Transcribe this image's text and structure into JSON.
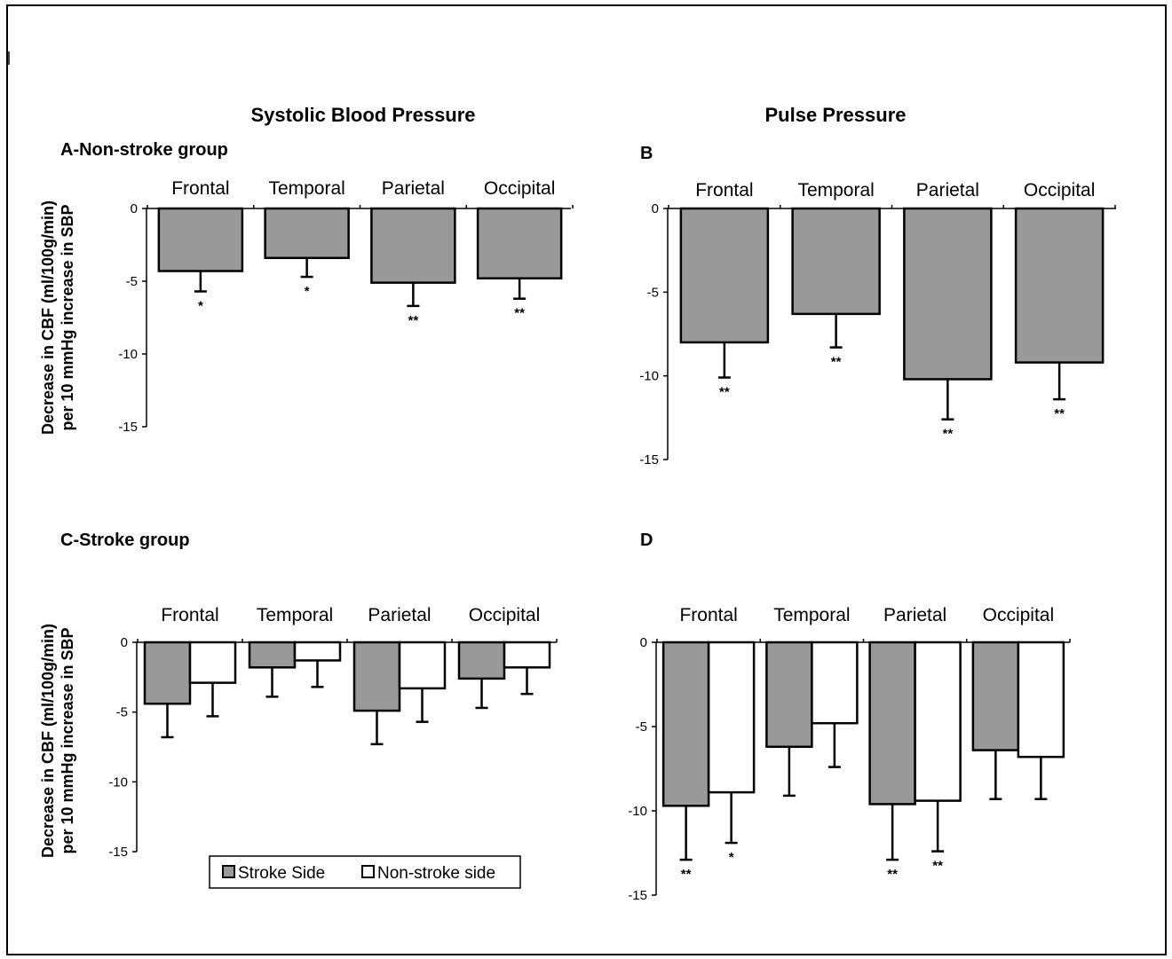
{
  "headers": {
    "left": "Systolic Blood Pressure",
    "right": "Pulse Pressure"
  },
  "legend": {
    "stroke": "Stroke Side",
    "nonstroke": "Non-stroke side"
  },
  "colors": {
    "stroke_side": "#999999",
    "non_stroke_side": "#ffffff",
    "outline": "#000000"
  },
  "chart_data": [
    {
      "id": "A",
      "panel_label": "A-Non-stroke group",
      "type": "bar",
      "categories": [
        "Frontal",
        "Temporal",
        "Parietal",
        "Occipital"
      ],
      "ylabel": [
        "Decrease in CBF (ml/100g/min)",
        "per 10 mmHg increase in SBP"
      ],
      "yticks": [
        0,
        -5,
        -10,
        -15
      ],
      "ylim": [
        -15,
        0
      ],
      "series": [
        {
          "values": [
            -4.3,
            -3.4,
            -5.1,
            -4.8
          ],
          "errors": [
            1.4,
            1.3,
            1.6,
            1.4
          ],
          "significance": [
            "*",
            "*",
            "**",
            "**"
          ]
        }
      ]
    },
    {
      "id": "B",
      "panel_label": "B",
      "type": "bar",
      "categories": [
        "Frontal",
        "Temporal",
        "Parietal",
        "Occipital"
      ],
      "ylabel": [],
      "yticks": [
        0,
        -5,
        -10,
        -15
      ],
      "ylim": [
        -15,
        0
      ],
      "series": [
        {
          "values": [
            -8.0,
            -6.3,
            -10.2,
            -9.2
          ],
          "errors": [
            2.1,
            2.0,
            2.4,
            2.2
          ],
          "significance": [
            "**",
            "**",
            "**",
            "**"
          ]
        }
      ]
    },
    {
      "id": "C",
      "panel_label": "C-Stroke group",
      "type": "bar",
      "categories": [
        "Frontal",
        "Temporal",
        "Parietal",
        "Occipital"
      ],
      "ylabel": [
        "Decrease in CBF (ml/100g/min)",
        "per 10 mmHg increase in SBP"
      ],
      "yticks": [
        0,
        -5,
        -10,
        -15
      ],
      "ylim": [
        -15,
        0
      ],
      "series": [
        {
          "name": "Stroke Side",
          "values": [
            -4.4,
            -1.8,
            -4.9,
            -2.6
          ],
          "errors": [
            2.4,
            2.1,
            2.4,
            2.1
          ],
          "significance": [
            "",
            "",
            "",
            ""
          ]
        },
        {
          "name": "Non-stroke side",
          "values": [
            -2.9,
            -1.3,
            -3.3,
            -1.8
          ],
          "errors": [
            2.4,
            1.9,
            2.4,
            1.9
          ],
          "significance": [
            "",
            "",
            "",
            ""
          ]
        }
      ]
    },
    {
      "id": "D",
      "panel_label": "D",
      "type": "bar",
      "categories": [
        "Frontal",
        "Temporal",
        "Parietal",
        "Occipital"
      ],
      "ylabel": [],
      "yticks": [
        0,
        -5,
        -10,
        -15
      ],
      "ylim": [
        -15,
        0
      ],
      "series": [
        {
          "name": "Stroke Side",
          "values": [
            -9.7,
            -6.2,
            -9.6,
            -6.4
          ],
          "errors": [
            3.2,
            2.9,
            3.3,
            2.9
          ],
          "significance": [
            "**",
            "",
            "**",
            ""
          ]
        },
        {
          "name": "Non-stroke side",
          "values": [
            -8.9,
            -4.8,
            -9.4,
            -6.8
          ],
          "errors": [
            3.0,
            2.6,
            3.0,
            2.5
          ],
          "significance": [
            "*",
            "",
            "**",
            ""
          ]
        }
      ]
    }
  ]
}
